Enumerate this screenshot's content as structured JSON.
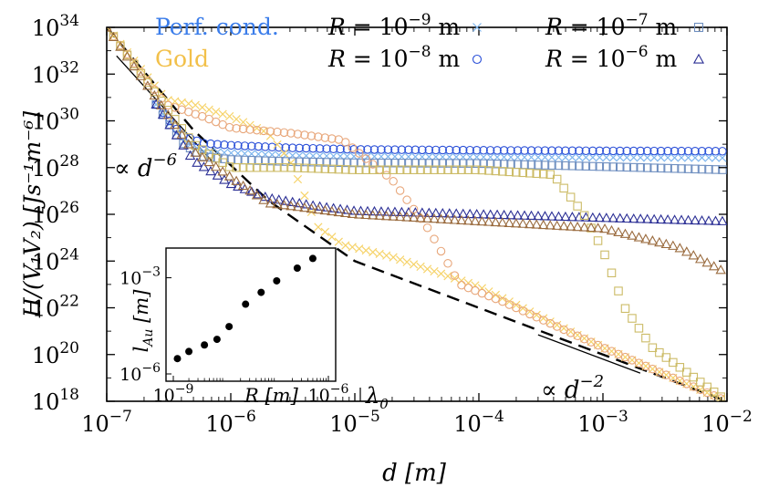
{
  "chart_data": {
    "type": "scatter",
    "xlabel": "d [m]",
    "ylabel": "H/(V₁V₂) [Js⁻¹m⁻⁶]",
    "xscale": "log",
    "yscale": "log",
    "xlim": [
      1e-07,
      0.01
    ],
    "ylim": [
      1e+18,
      1e+34
    ],
    "x_ticks": [
      {
        "value": 1e-07,
        "base": "10",
        "exp": "−7"
      },
      {
        "value": 1e-06,
        "base": "10",
        "exp": "−6"
      },
      {
        "value": 1e-05,
        "base": "10",
        "exp": "−5"
      },
      {
        "value": 0.0001,
        "base": "10",
        "exp": "−4"
      },
      {
        "value": 0.001,
        "base": "10",
        "exp": "−3"
      },
      {
        "value": 0.01,
        "base": "10",
        "exp": "−2"
      }
    ],
    "y_ticks": [
      {
        "value": 1e+18,
        "base": "10",
        "exp": "18"
      },
      {
        "value": 1e+20,
        "base": "10",
        "exp": "20"
      },
      {
        "value": 1e+22,
        "base": "10",
        "exp": "22"
      },
      {
        "value": 1e+24,
        "base": "10",
        "exp": "24"
      },
      {
        "value": 1e+26,
        "base": "10",
        "exp": "26"
      },
      {
        "value": 1e+28,
        "base": "10",
        "exp": "28"
      },
      {
        "value": 1e+30,
        "base": "10",
        "exp": "30"
      },
      {
        "value": 1e+32,
        "base": "10",
        "exp": "32"
      },
      {
        "value": 1e+34,
        "base": "10",
        "exp": "34"
      }
    ],
    "legend": {
      "materials": [
        {
          "label": "Perf. cond.",
          "color": "#3b7dea"
        },
        {
          "label": "Gold",
          "color": "#f2c04a"
        }
      ],
      "radii": [
        {
          "label": "R = 10",
          "exp": "−9",
          "unit": "m",
          "marker": "x"
        },
        {
          "label": "R = 10",
          "exp": "−8",
          "unit": "m",
          "marker": "circle"
        },
        {
          "label": "R = 10",
          "exp": "−7",
          "unit": "m",
          "marker": "square"
        },
        {
          "label": "R = 10",
          "exp": "−6",
          "unit": "m",
          "marker": "triangle"
        }
      ]
    },
    "annotations": [
      {
        "text": "∝ d",
        "exp": "−6"
      },
      {
        "text": "∝ d",
        "exp": "−2"
      },
      {
        "text": "λ",
        "sub": "0"
      }
    ],
    "series_colors": {
      "pc_xmark": "#7fb6ee",
      "pc_circle": "#2a4fd8",
      "pc_square": "#6f8fc0",
      "pc_triangle": "#2b2f95",
      "gold_xmark": "#f6d36a",
      "gold_circle": "#e8a77b",
      "gold_square": "#ccbb66",
      "gold_triangle": "#9a6b3e"
    },
    "reference_lines": [
      {
        "name": "asymptote",
        "style": "dashed",
        "points": [
          [
            1e-07,
            1e+34
          ],
          [
            5e-07,
            4e+29
          ],
          [
            2e-06,
            4e+26
          ],
          [
            1e-05,
            1e+24
          ],
          [
            0.01,
            1e+18
          ]
        ]
      },
      {
        "name": "d^-6 guide",
        "style": "solid",
        "points": [
          [
            1.2e-07,
            6e+32
          ],
          [
            7e-07,
            2e+28
          ]
        ]
      },
      {
        "name": "d^-2 guide",
        "style": "solid",
        "points": [
          [
            0.0003,
            7e+20
          ],
          [
            0.002,
            1.6e+19
          ]
        ]
      }
    ],
    "series": [
      {
        "marker": "x",
        "material": "pc",
        "points": [
          [
            2.5e-07,
            5e+30
          ],
          [
            4e-07,
            1.5e+29
          ],
          [
            6e-07,
            5e+28
          ],
          [
            1e-06,
            4.2e+28
          ],
          [
            3e-06,
            3.3e+28
          ],
          [
            1e-05,
            3e+28
          ],
          [
            0.0001,
            2.8e+28
          ],
          [
            0.001,
            2.7e+28
          ],
          [
            0.01,
            2.6e+28
          ]
        ]
      },
      {
        "marker": "circle",
        "material": "pc",
        "points": [
          [
            2.5e-07,
            5e+30
          ],
          [
            4e-07,
            2.5e+29
          ],
          [
            6e-07,
            1.1e+29
          ],
          [
            1e-06,
            9e+28
          ],
          [
            3e-06,
            7e+28
          ],
          [
            1e-05,
            6e+28
          ],
          [
            0.0001,
            5.5e+28
          ],
          [
            0.001,
            5.2e+28
          ],
          [
            0.01,
            5e+28
          ]
        ]
      },
      {
        "marker": "square",
        "material": "pc",
        "points": [
          [
            2.5e-07,
            5e+30
          ],
          [
            4e-07,
            1.2e+29
          ],
          [
            6e-07,
            3e+28
          ],
          [
            1e-06,
            2.2e+28
          ],
          [
            3e-06,
            1.8e+28
          ],
          [
            1e-05,
            1.6e+28
          ],
          [
            0.0001,
            1.5e+28
          ],
          [
            0.001,
            1.1e+28
          ],
          [
            0.01,
            8e+27
          ]
        ]
      },
      {
        "marker": "triangle",
        "material": "pc",
        "points": [
          [
            2.5e-07,
            5e+30
          ],
          [
            5e-07,
            2e+28
          ],
          [
            1e-06,
            2e+27
          ],
          [
            2e-06,
            5e+26
          ],
          [
            5e-06,
            2.2e+26
          ],
          [
            1e-05,
            1.4e+26
          ],
          [
            0.0001,
            1e+26
          ],
          [
            0.001,
            7e+25
          ],
          [
            0.01,
            5e+25
          ]
        ]
      },
      {
        "marker": "x",
        "material": "gold",
        "points": [
          [
            1e-07,
            1e+34
          ],
          [
            3e-07,
            8e+30
          ],
          [
            5e-07,
            5e+30
          ],
          [
            1e-06,
            1.5e+30
          ],
          [
            2e-06,
            3e+29
          ],
          [
            3e-06,
            2e+28
          ],
          [
            5e-06,
            3e+25
          ],
          [
            8e-06,
            5e+24
          ],
          [
            2e-05,
            1.5e+24
          ],
          [
            0.0001,
            8e+22
          ],
          [
            0.001,
            2e+20
          ],
          [
            0.01,
            1e+18
          ]
        ]
      },
      {
        "marker": "circle",
        "material": "gold",
        "points": [
          [
            1e-07,
            1e+34
          ],
          [
            3e-07,
            5e+30
          ],
          [
            6e-07,
            1.5e+30
          ],
          [
            1e-06,
            5e+29
          ],
          [
            3e-06,
            3e+29
          ],
          [
            8e-06,
            1.5e+29
          ],
          [
            2e-05,
            3e+27
          ],
          [
            4e-05,
            2e+25
          ],
          [
            7e-05,
            1e+23
          ],
          [
            0.00015,
            2e+22
          ],
          [
            0.001,
            2e+20
          ],
          [
            0.01,
            1e+18
          ]
        ]
      },
      {
        "marker": "square",
        "material": "gold",
        "points": [
          [
            1e-07,
            1e+34
          ],
          [
            5e-07,
            1e+29
          ],
          [
            1e-06,
            1e+28
          ],
          [
            3e-06,
            1e+28
          ],
          [
            1e-05,
            8e+27
          ],
          [
            0.0001,
            8e+27
          ],
          [
            0.0004,
            5e+27
          ],
          [
            0.0007,
            1e+26
          ],
          [
            0.001,
            3e+24
          ],
          [
            0.0015,
            1e+22
          ],
          [
            0.0025,
            2e+20
          ],
          [
            0.01,
            1e+18
          ]
        ]
      },
      {
        "marker": "triangle",
        "material": "gold",
        "points": [
          [
            1e-07,
            1e+34
          ],
          [
            5e-07,
            5e+28
          ],
          [
            2e-06,
            3e+26
          ],
          [
            1e-05,
            1e+26
          ],
          [
            0.0001,
            5e+25
          ],
          [
            0.001,
            2.5e+25
          ],
          [
            0.004,
            4e+24
          ],
          [
            0.01,
            3e+23
          ]
        ]
      }
    ],
    "inset": {
      "xlabel": "R [m]",
      "ylabel": "l_Au [m]",
      "xscale": "log",
      "yscale": "log",
      "xlim": [
        1e-09,
        1e-06
      ],
      "ylim": [
        1e-06,
        0.005
      ],
      "x_ticks": [
        {
          "value": 1e-09,
          "base": "10",
          "exp": "−9"
        },
        {
          "value": 1e-06,
          "base": "10",
          "exp": "−6"
        }
      ],
      "y_ticks": [
        {
          "value": 1e-06,
          "base": "10",
          "exp": "−6"
        },
        {
          "value": 0.001,
          "base": "10",
          "exp": "−3"
        }
      ],
      "points": [
        [
          1.2e-09,
          3e-06
        ],
        [
          2e-09,
          5e-06
        ],
        [
          4e-09,
          8e-06
        ],
        [
          7e-09,
          1.2e-05
        ],
        [
          1.2e-08,
          3e-05
        ],
        [
          2.5e-08,
          0.00015
        ],
        [
          5e-08,
          0.00035
        ],
        [
          1e-07,
          0.0008
        ],
        [
          2.5e-07,
          0.002
        ],
        [
          5e-07,
          0.004
        ]
      ]
    }
  }
}
